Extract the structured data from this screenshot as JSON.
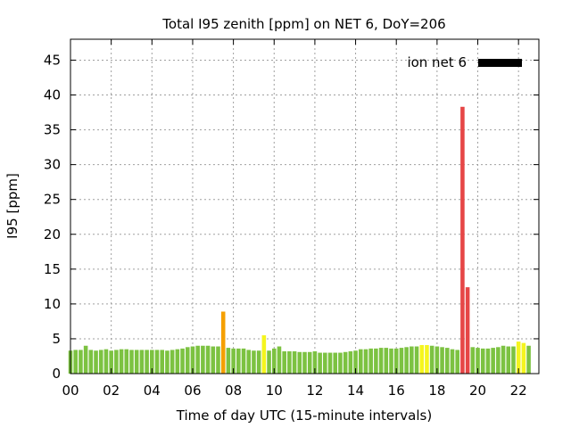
{
  "chart_data": {
    "type": "bar",
    "title": "Total I95 zenith [ppm] on NET 6, DoY=206",
    "xlabel": "Time of day UTC (15-minute intervals)",
    "ylabel": "I95 [ppm]",
    "xlim": [
      0,
      23
    ],
    "ylim": [
      0,
      48
    ],
    "x_tick_labels": [
      "00",
      "02",
      "04",
      "06",
      "08",
      "10",
      "12",
      "14",
      "16",
      "18",
      "20",
      "22"
    ],
    "y_tick_labels": [
      "0",
      "5",
      "10",
      "15",
      "20",
      "25",
      "30",
      "35",
      "40",
      "45"
    ],
    "grid": true,
    "legend": {
      "position": "top-right",
      "entries": [
        {
          "label": "ion net 6",
          "color": "#000000"
        }
      ]
    },
    "interval_hours": 0.25,
    "colors": {
      "green": "#7cc241",
      "yellow": "#f5f51e",
      "orange": "#f5a000",
      "red": "#e64646"
    },
    "series": [
      {
        "name": "ion net 6",
        "values": [
          3.3,
          3.4,
          3.4,
          4.0,
          3.4,
          3.3,
          3.4,
          3.5,
          3.3,
          3.4,
          3.5,
          3.5,
          3.4,
          3.4,
          3.4,
          3.4,
          3.4,
          3.4,
          3.4,
          3.3,
          3.4,
          3.5,
          3.6,
          3.8,
          3.9,
          4.0,
          4.0,
          4.0,
          3.9,
          3.9,
          8.9,
          3.7,
          3.6,
          3.6,
          3.6,
          3.4,
          3.3,
          3.3,
          5.5,
          3.3,
          3.6,
          3.9,
          3.2,
          3.2,
          3.2,
          3.1,
          3.1,
          3.1,
          3.2,
          3.0,
          3.0,
          3.0,
          3.0,
          3.0,
          3.1,
          3.2,
          3.3,
          3.5,
          3.5,
          3.6,
          3.6,
          3.7,
          3.7,
          3.6,
          3.6,
          3.7,
          3.8,
          3.9,
          3.9,
          4.1,
          4.1,
          4.0,
          3.9,
          3.8,
          3.7,
          3.5,
          3.4,
          38.3,
          12.4,
          3.8,
          3.7,
          3.6,
          3.6,
          3.7,
          3.8,
          4.0,
          3.9,
          3.9,
          4.6,
          4.4,
          4.0
        ],
        "colors": [
          "green",
          "green",
          "green",
          "green",
          "green",
          "green",
          "green",
          "green",
          "green",
          "green",
          "green",
          "green",
          "green",
          "green",
          "green",
          "green",
          "green",
          "green",
          "green",
          "green",
          "green",
          "green",
          "green",
          "green",
          "green",
          "green",
          "green",
          "green",
          "green",
          "green",
          "orange",
          "green",
          "green",
          "green",
          "green",
          "green",
          "green",
          "green",
          "yellow",
          "green",
          "green",
          "green",
          "green",
          "green",
          "green",
          "green",
          "green",
          "green",
          "green",
          "green",
          "green",
          "green",
          "green",
          "green",
          "green",
          "green",
          "green",
          "green",
          "green",
          "green",
          "green",
          "green",
          "green",
          "green",
          "green",
          "green",
          "green",
          "green",
          "green",
          "yellow",
          "yellow",
          "green",
          "green",
          "green",
          "green",
          "green",
          "green",
          "red",
          "red",
          "green",
          "green",
          "green",
          "green",
          "green",
          "green",
          "green",
          "green",
          "green",
          "yellow",
          "yellow",
          "green"
        ]
      }
    ]
  }
}
